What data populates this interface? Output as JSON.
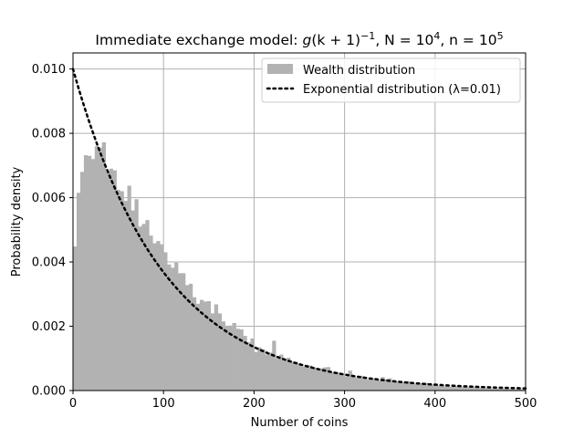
{
  "chart_data": {
    "type": "bar",
    "title": "Immediate exchange model: g(k) = (k + 1)⁻¹, N = 10⁴, n = 10⁵",
    "title_parts": {
      "prefix": "Immediate exchange model: ",
      "g": "g",
      "k1": "(k",
      "plus1": " + 1)",
      "exp1": "−1",
      "sep1": ", N = 10",
      "exp2": "4",
      "sep2": ", n = 10",
      "exp3": "5"
    },
    "xlabel": "Number of coins",
    "ylabel": "Probability density",
    "xlim": [
      0,
      500
    ],
    "ylim": [
      0,
      0.0105
    ],
    "x_ticks": [
      0,
      100,
      200,
      300,
      400,
      500
    ],
    "x_tick_labels": [
      "0",
      "100",
      "200",
      "300",
      "400",
      "500"
    ],
    "y_ticks": [
      0,
      0.002,
      0.004,
      0.006,
      0.008,
      0.01
    ],
    "y_tick_labels": [
      "0.000",
      "0.002",
      "0.004",
      "0.006",
      "0.008",
      "0.010"
    ],
    "grid": true,
    "legend_position": "top-right",
    "bin_width": 4,
    "histogram": {
      "name": "Wealth distribution",
      "color": "#b2b2b2",
      "bin_starts": [
        0,
        4,
        8,
        12,
        16,
        20,
        24,
        28,
        32,
        36,
        40,
        44,
        48,
        52,
        56,
        60,
        64,
        68,
        72,
        76,
        80,
        84,
        88,
        92,
        96,
        100,
        104,
        108,
        112,
        116,
        120,
        124,
        128,
        132,
        136,
        140,
        144,
        148,
        152,
        156,
        160,
        164,
        168,
        172,
        176,
        180,
        184,
        188,
        192,
        196,
        200,
        204,
        208,
        212,
        216,
        220,
        224,
        228,
        232,
        236,
        240,
        244,
        248,
        252,
        256,
        260,
        264,
        268,
        272,
        276,
        280,
        284,
        288,
        292,
        296,
        300,
        304,
        308,
        312,
        316,
        320,
        324,
        328,
        332,
        336,
        340,
        344,
        348,
        352,
        356,
        360,
        364,
        368,
        372,
        376,
        380,
        384,
        388,
        392,
        396,
        400,
        404,
        408,
        412,
        416,
        420,
        424,
        428,
        432,
        436,
        440,
        444,
        448,
        452,
        456,
        460,
        464,
        468,
        472,
        476,
        480,
        484,
        488,
        492,
        496
      ],
      "values": [
        0.00448,
        0.00615,
        0.0068,
        0.00732,
        0.0073,
        0.0072,
        0.0076,
        0.00756,
        0.00772,
        0.0068,
        0.0069,
        0.00685,
        0.00624,
        0.0062,
        0.0059,
        0.00637,
        0.0056,
        0.00595,
        0.0051,
        0.00518,
        0.0053,
        0.00482,
        0.00458,
        0.00465,
        0.00455,
        0.0043,
        0.00392,
        0.00382,
        0.00398,
        0.00365,
        0.00365,
        0.00328,
        0.00332,
        0.0029,
        0.0027,
        0.00282,
        0.00277,
        0.00278,
        0.0024,
        0.00268,
        0.0024,
        0.00215,
        0.002,
        0.00202,
        0.0021,
        0.00192,
        0.0019,
        0.0017,
        0.0015,
        0.00162,
        0.0012,
        0.00134,
        0.00128,
        0.00112,
        0.00118,
        0.00155,
        0.001,
        0.00112,
        0.00098,
        0.00102,
        0.0009,
        0.0009,
        0.00084,
        0.00075,
        0.0008,
        0.00078,
        0.00072,
        0.00066,
        0.00069,
        0.00072,
        0.00073,
        0.00056,
        0.00054,
        0.00056,
        0.00048,
        0.00044,
        0.00062,
        0.00046,
        0.0004,
        0.00046,
        0.0004,
        0.00035,
        0.00034,
        0.00038,
        0.00032,
        0.00042,
        0.00035,
        0.00038,
        0.0003,
        0.00028,
        0.00027,
        0.00026,
        0.00029,
        0.00024,
        0.00021,
        0.00022,
        0.00022,
        0.00024,
        0.00018,
        0.00018,
        0.00015,
        0.00016,
        0.00014,
        0.00013,
        0.00012,
        0.00014,
        0.00012,
        0.00011,
        0.0001,
        0.00011,
        0.0001,
        9e-05,
        9e-05,
        8e-05,
        8e-05,
        7e-05,
        7e-05,
        6e-05,
        6e-05,
        5e-05,
        5e-05,
        5e-05,
        4e-05,
        4e-05,
        4e-05
      ]
    },
    "exponential": {
      "name": "Exponential distribution (λ=0.01)",
      "lambda": 0.01,
      "color": "#000000",
      "style": "dotted"
    }
  }
}
